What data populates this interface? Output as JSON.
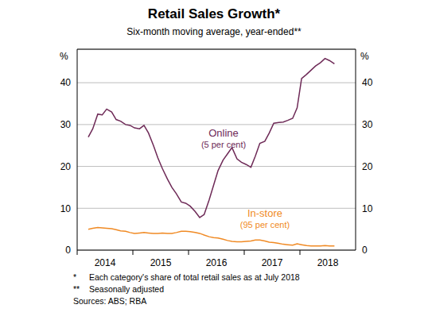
{
  "chart_data": {
    "type": "line",
    "title": "Retail Sales Growth*",
    "subtitle": "Six-month moving average, year-ended**",
    "y_unit": "%",
    "x": [
      2014.2,
      2014.28,
      2014.37,
      2014.45,
      2014.53,
      2014.62,
      2014.7,
      2014.78,
      2014.87,
      2014.95,
      2015.03,
      2015.12,
      2015.2,
      2015.28,
      2015.37,
      2015.45,
      2015.53,
      2015.62,
      2015.7,
      2015.78,
      2015.87,
      2015.95,
      2016.03,
      2016.12,
      2016.2,
      2016.28,
      2016.37,
      2016.45,
      2016.53,
      2016.62,
      2016.7,
      2016.78,
      2016.87,
      2016.95,
      2017.03,
      2017.12,
      2017.2,
      2017.28,
      2017.37,
      2017.45,
      2017.53,
      2017.62,
      2017.7,
      2017.78,
      2017.87,
      2017.95,
      2018.03,
      2018.12,
      2018.2,
      2018.28,
      2018.37,
      2018.45,
      2018.53,
      2018.62
    ],
    "series": [
      {
        "name": "Online",
        "annotation": "(5 per cent)",
        "color": "#6e2a57",
        "values": [
          27,
          29,
          32.5,
          32.3,
          33.7,
          33,
          31.2,
          30.8,
          30,
          29.8,
          29.2,
          29,
          29.8,
          28,
          25,
          22,
          19.5,
          17,
          15,
          13.5,
          11.5,
          11.2,
          10.5,
          9.2,
          7.8,
          8.5,
          12,
          15.5,
          19,
          21.5,
          23,
          24.5,
          21.8,
          21,
          20.5,
          19.8,
          22.5,
          25.5,
          26,
          28,
          30.3,
          30.5,
          30.6,
          31,
          31.5,
          34,
          41,
          42,
          43,
          44,
          44.8,
          45.8,
          45.3,
          44.5
        ]
      },
      {
        "name": "In-store",
        "annotation": "(95 per cent)",
        "color": "#f08a24",
        "values": [
          5,
          5.2,
          5.4,
          5.3,
          5.2,
          5.1,
          4.9,
          4.6,
          4.5,
          4.2,
          4,
          4.1,
          4.2,
          4.1,
          4,
          4,
          4.1,
          4,
          4,
          4.2,
          4.5,
          4.5,
          4.4,
          4.2,
          4,
          3.6,
          3.2,
          3,
          2.9,
          2.6,
          2.3,
          2.1,
          2,
          2,
          2.1,
          2.2,
          2.4,
          2.4,
          2.2,
          1.9,
          1.8,
          1.6,
          1.4,
          1.3,
          1.2,
          1.5,
          1.3,
          1.1,
          1,
          1,
          1,
          1.1,
          1,
          1
        ]
      }
    ],
    "xlim": [
      2014,
      2019
    ],
    "xticks": [
      2014,
      2015,
      2016,
      2017,
      2018
    ],
    "ylim": [
      0,
      48
    ],
    "yticks": [
      0,
      10,
      20,
      30,
      40
    ],
    "grid": true,
    "footnotes": [
      {
        "mark": "*",
        "text": "Each category's share of total retail sales as at July 2018"
      },
      {
        "mark": "**",
        "text": "Seasonally adjusted"
      }
    ],
    "source": "Sources: ABS; RBA"
  }
}
